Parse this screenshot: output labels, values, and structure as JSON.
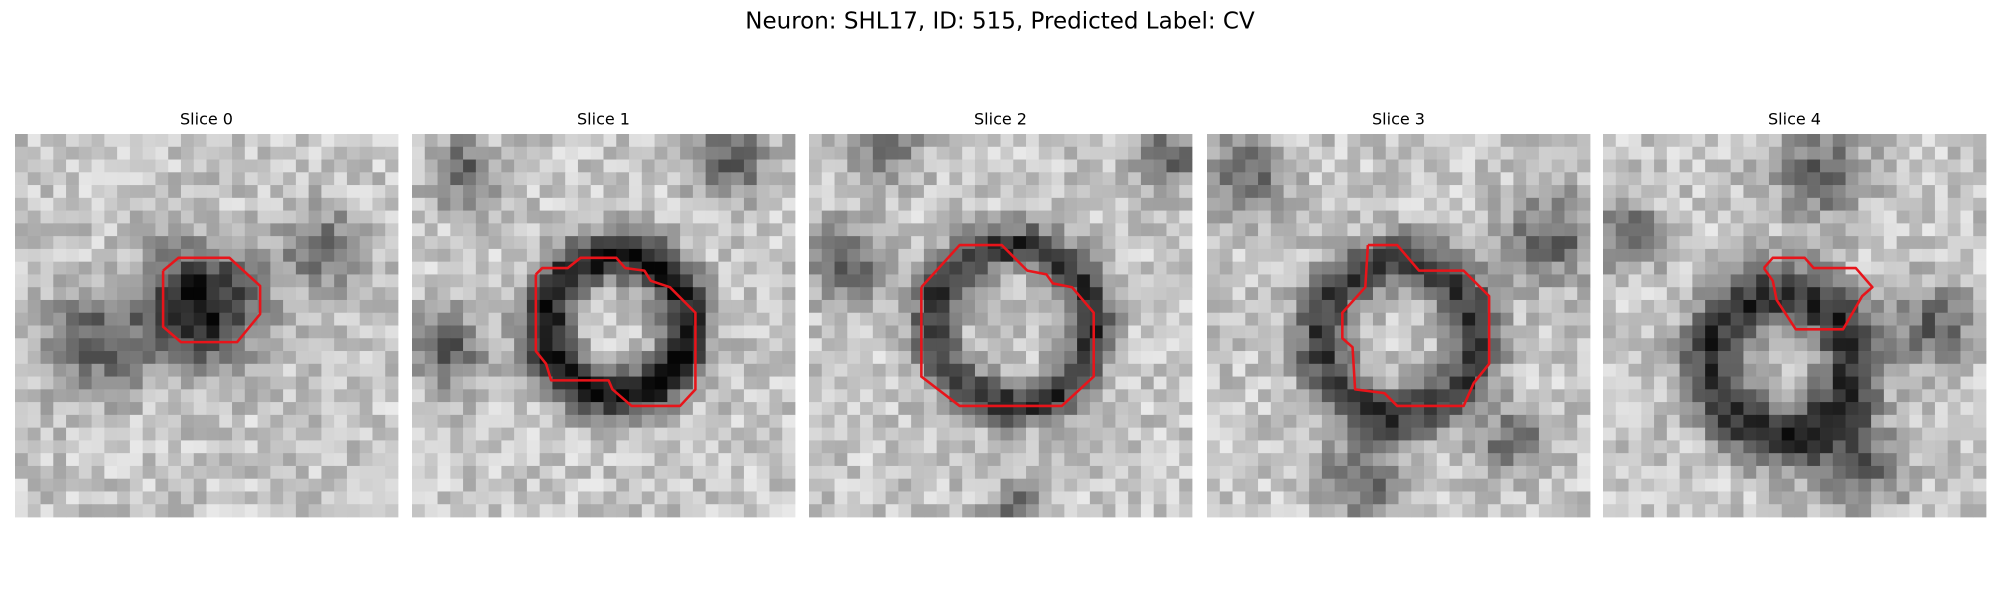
{
  "title": "Neuron: SHL17, ID: 515, Predicted Label: CV",
  "panels": [
    {
      "title": "Slice 0"
    },
    {
      "title": "Slice 1"
    },
    {
      "title": "Slice 2"
    },
    {
      "title": "Slice 3"
    },
    {
      "title": "Slice 4"
    }
  ]
}
